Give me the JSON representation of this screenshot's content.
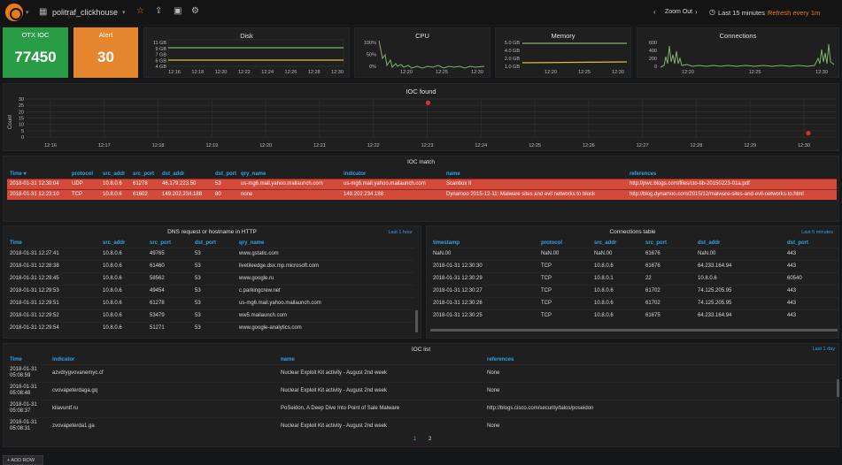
{
  "topbar": {
    "dashboard_title": "politraf_clickhouse",
    "zoom_out": "Zoom Out",
    "time_range": "Last 15 minutes",
    "refresh": "Refresh every 1m"
  },
  "stats": {
    "otx": {
      "label": "OTX IOC",
      "value": "77450",
      "color": "#299c46"
    },
    "alert": {
      "label": "Alert",
      "value": "30",
      "color": "#e5862e"
    }
  },
  "disk": {
    "title": "Disk",
    "yticks": [
      "11 GB",
      "9 GB",
      "7 GB",
      "6 GB",
      "4 GB"
    ],
    "xticks": [
      "12:16",
      "12:18",
      "12:20",
      "12:22",
      "12:24",
      "12:26",
      "12:28",
      "12:30"
    ]
  },
  "cpu": {
    "title": "CPU",
    "yticks": [
      "100%",
      "50%",
      "0%"
    ],
    "xticks": [
      "12:20",
      "12:25",
      "12:30"
    ]
  },
  "memory": {
    "title": "Memory",
    "yticks": [
      "5.0 GB",
      "4.0 GB",
      "2.0 GB",
      "1.0 GB"
    ],
    "xticks": [
      "12:20",
      "12:25",
      "12:30"
    ]
  },
  "connections": {
    "title": "Connections",
    "yticks": [
      "600",
      "400",
      "200",
      "0"
    ],
    "xticks": [
      "12:20",
      "12:25",
      "12:30"
    ]
  },
  "chart_data": {
    "type": "scatter",
    "title": "IOC found",
    "ylabel": "Count",
    "ylim": [
      0,
      30
    ],
    "yticks": [
      "30",
      "25",
      "20",
      "15",
      "10",
      "5",
      "0"
    ],
    "xticks": [
      "12:16",
      "12:17",
      "12:18",
      "12:19",
      "12:20",
      "12:21",
      "12:22",
      "12:23",
      "12:24",
      "12:25",
      "12:26",
      "12:27",
      "12:28",
      "12:29",
      "12:30"
    ],
    "points": [
      {
        "x": "12:23",
        "y": 27
      },
      {
        "x": "12:30",
        "y": 3
      }
    ],
    "color": "#e02f2f"
  },
  "ioc_match": {
    "title": "IOC match",
    "columns": [
      "Time ▾",
      "protocol",
      "src_addr",
      "src_port",
      "dst_addr",
      "dst_port",
      "qry_name",
      "indicator",
      "name",
      "references"
    ],
    "rows": [
      [
        "2018-01-31 12:30:04",
        "UDP",
        "10.8.0.6",
        "61278",
        "46.179.223.50",
        "53",
        "us-mg6.mail.yahoo.mailaunch.com",
        "us-mg6.mail.yahoo.mailaunch.com",
        "Scanbox II",
        "http://pwc.blogs.com/files/cto-tib-20150223-01a.pdf"
      ],
      [
        "2018-01-31 12:23:10",
        "TCP",
        "10.8.0.6",
        "61602",
        "149.202.234.188",
        "80",
        "none",
        "149.202.234.188",
        "Dynamoo 2015-12-11: Malware sites and evil networks to block",
        "http://blog.dynamoo.com/2015/12/malware-sites-and-evil-networks-to.html"
      ]
    ]
  },
  "dns": {
    "title": "DNS request or hostname in HTTP",
    "range": "Last 1 hour",
    "columns": [
      "Time",
      "src_addr",
      "src_port",
      "dst_port",
      "qry_name"
    ],
    "rows": [
      [
        "2018-01-31 12:27:41",
        "10.8.0.6",
        "49765",
        "53",
        "www.gstatic.com"
      ],
      [
        "2018-01-31 12:28:38",
        "10.8.0.6",
        "61460",
        "53",
        "livetileedge.dsx.mp.microsoft.com"
      ],
      [
        "2018-01-31 12:29:45",
        "10.8.0.6",
        "58562",
        "53",
        "www.google.ru"
      ],
      [
        "2018-01-31 12:29:53",
        "10.8.0.6",
        "49454",
        "53",
        "c.parkingcrew.net"
      ],
      [
        "2018-01-31 12:29:51",
        "10.8.0.6",
        "61278",
        "53",
        "us-mg6.mail.yahoo.mailaunch.com"
      ],
      [
        "2018-01-31 12:29:52",
        "10.8.0.6",
        "53479",
        "53",
        "ww5.mailaunch.com"
      ],
      [
        "2018-01-31 12:29:54",
        "10.8.0.6",
        "51271",
        "53",
        "www.google-analytics.com"
      ]
    ]
  },
  "conn_table": {
    "title": "Connections table",
    "range": "Last 5 minutes",
    "columns": [
      "timestamp",
      "protocol",
      "src_addr",
      "src_port",
      "dst_addr",
      "dst_port"
    ],
    "rows": [
      [
        "NaN.00",
        "NaN.00",
        "NaN.00",
        "61676",
        "NaN.00",
        "443"
      ],
      [
        "2018-01-31 12:30:30",
        "TCP",
        "10.8.0.6",
        "61676",
        "64.233.164.94",
        "443"
      ],
      [
        "2018-01-31 12:30:29",
        "TCP",
        "10.8.0.1",
        "22",
        "10.8.0.6",
        "60540"
      ],
      [
        "2018-01-31 12:30:27",
        "TCP",
        "10.8.0.6",
        "61702",
        "74.125.205.95",
        "443"
      ],
      [
        "2018-01-31 12:30:26",
        "TCP",
        "10.8.0.6",
        "61702",
        "74.125.205.95",
        "443"
      ],
      [
        "2018-01-31 12:30:25",
        "TCP",
        "10.8.0.6",
        "61675",
        "64.233.164.94",
        "443"
      ]
    ]
  },
  "ioc_list": {
    "title": "IOC list",
    "range": "Last 1 day",
    "columns": [
      "Time",
      "indicator",
      "name",
      "references"
    ],
    "rows": [
      [
        "2018-01-31",
        "05:08:59",
        "azvdrygvovanemyc.cf",
        "Nuclear Exploit Kit activity - August 2nd week",
        "None"
      ],
      [
        "2018-01-31",
        "05:08:48",
        "cvovapeterdaga.gq",
        "Nuclear Exploit Kit activity - August 2nd week",
        "None"
      ],
      [
        "2018-01-31",
        "05:08:37",
        "kliavuntf.ru",
        "PoSeidon, A Deep Dive Into Point of Sale Malware",
        "http://blogs.cisco.com/security/talos/poseidon"
      ],
      [
        "2018-01-31",
        "05:08:31",
        "zvovapeterda1.ga",
        "Nuclear Exploit Kit activity - August 2nd week",
        "None"
      ]
    ],
    "pages": [
      "1",
      "2"
    ]
  },
  "add_row": "+ ADD ROW"
}
